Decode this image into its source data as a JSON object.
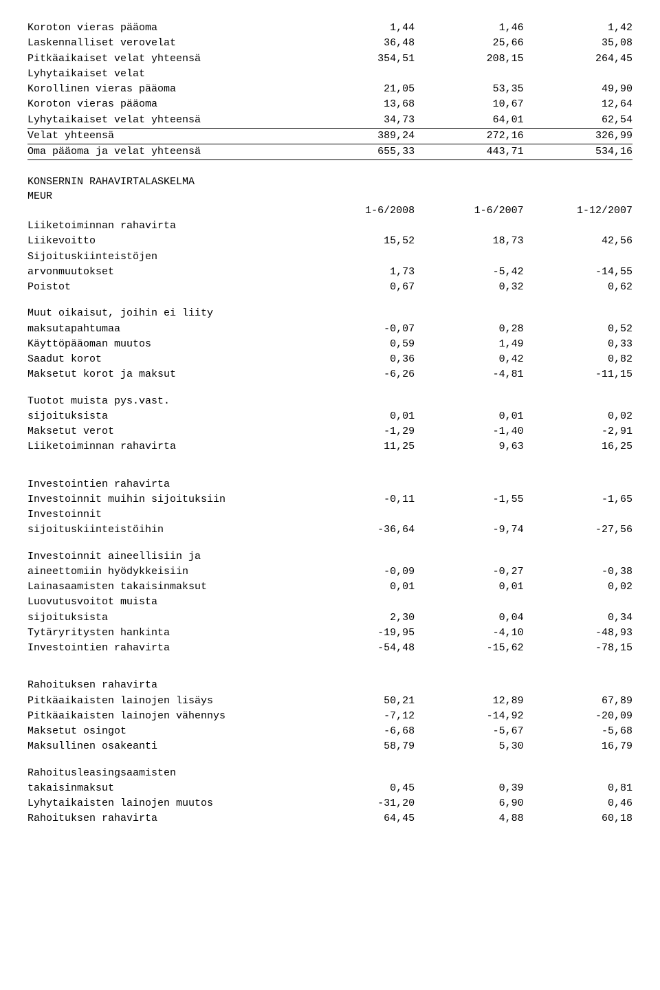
{
  "top": [
    {
      "label": "Koroton vieras pääoma",
      "v": [
        "1,44",
        "1,46",
        "1,42"
      ]
    },
    {
      "label": "Laskennalliset verovelat",
      "v": [
        "36,48",
        "25,66",
        "35,08"
      ]
    },
    {
      "label": "Pitkäaikaiset velat yhteensä",
      "v": [
        "354,51",
        "208,15",
        "264,45"
      ]
    },
    {
      "label": "Lyhytaikaiset velat",
      "v": [
        "",
        "",
        ""
      ]
    },
    {
      "label": "Korollinen vieras pääoma",
      "v": [
        "21,05",
        "53,35",
        "49,90"
      ]
    },
    {
      "label": "Koroton vieras pääoma",
      "v": [
        "13,68",
        "10,67",
        "12,64"
      ]
    },
    {
      "label": "Lyhytaikaiset velat yhteensä",
      "v": [
        "34,73",
        "64,01",
        "62,54"
      ]
    }
  ],
  "mid": [
    {
      "label": "Velat yhteensä",
      "v": [
        "389,24",
        "272,16",
        "326,99"
      ]
    },
    {
      "label": "Oma pääoma ja velat yhteensä",
      "v": [
        "655,33",
        "443,71",
        "534,16"
      ]
    }
  ],
  "cashflow_title_1": "KONSERNIN RAHAVIRTALASKELMA",
  "cashflow_title_2": "MEUR",
  "period_header": [
    "1-6/2008",
    "1-6/2007",
    "1-12/2007"
  ],
  "op_header": "Liiketoiminnan rahavirta",
  "op": [
    {
      "label": "Liikevoitto",
      "v": [
        "15,52",
        "18,73",
        "42,56"
      ]
    },
    {
      "label": "Sijoituskiinteistöjen",
      "v": [
        "",
        "",
        ""
      ]
    },
    {
      "label": "arvonmuutokset",
      "v": [
        "1,73",
        "-5,42",
        "-14,55"
      ]
    },
    {
      "label": "Poistot",
      "v": [
        "0,67",
        "0,32",
        "0,62"
      ]
    }
  ],
  "op2": [
    {
      "label": "Muut oikaisut, joihin ei liity",
      "v": [
        "",
        "",
        ""
      ]
    },
    {
      "label": "maksutapahtumaa",
      "v": [
        "-0,07",
        "0,28",
        "0,52"
      ]
    },
    {
      "label": "Käyttöpääoman muutos",
      "v": [
        "0,59",
        "1,49",
        "0,33"
      ]
    },
    {
      "label": "Saadut korot",
      "v": [
        "0,36",
        "0,42",
        "0,82"
      ]
    },
    {
      "label": "Maksetut korot ja maksut",
      "v": [
        "-6,26",
        "-4,81",
        "-11,15"
      ]
    }
  ],
  "op3": [
    {
      "label": "Tuotot muista pys.vast.",
      "v": [
        "",
        "",
        ""
      ]
    },
    {
      "label": "sijoituksista",
      "v": [
        "0,01",
        "0,01",
        "0,02"
      ]
    },
    {
      "label": "Maksetut verot",
      "v": [
        "-1,29",
        "-1,40",
        "-2,91"
      ]
    },
    {
      "label": "Liiketoiminnan rahavirta",
      "v": [
        "11,25",
        "9,63",
        "16,25"
      ]
    }
  ],
  "inv_header": "Investointien rahavirta",
  "inv": [
    {
      "label": "Investoinnit muihin sijoituksiin",
      "v": [
        "-0,11",
        "-1,55",
        "-1,65"
      ]
    },
    {
      "label": "Investoinnit",
      "v": [
        "",
        "",
        ""
      ]
    },
    {
      "label": "sijoituskiinteistöihin",
      "v": [
        "-36,64",
        "-9,74",
        "-27,56"
      ]
    }
  ],
  "inv2": [
    {
      "label": "Investoinnit aineellisiin ja",
      "v": [
        "",
        "",
        ""
      ]
    },
    {
      "label": "aineettomiin hyödykkeisiin",
      "v": [
        "-0,09",
        "-0,27",
        "-0,38"
      ]
    },
    {
      "label": "Lainasaamisten takaisinmaksut",
      "v": [
        "0,01",
        "0,01",
        "0,02"
      ]
    },
    {
      "label": "Luovutusvoitot muista",
      "v": [
        "",
        "",
        ""
      ]
    },
    {
      "label": "sijoituksista",
      "v": [
        "2,30",
        "0,04",
        "0,34"
      ]
    },
    {
      "label": "Tytäryritysten hankinta",
      "v": [
        "-19,95",
        "-4,10",
        "-48,93"
      ]
    },
    {
      "label": "Investointien rahavirta",
      "v": [
        "-54,48",
        "-15,62",
        "-78,15"
      ]
    }
  ],
  "fin_header": "Rahoituksen rahavirta",
  "fin": [
    {
      "label": "Pitkäaikaisten lainojen lisäys",
      "v": [
        "50,21",
        "12,89",
        "67,89"
      ]
    },
    {
      "label": "Pitkäaikaisten lainojen vähennys",
      "v": [
        "-7,12",
        "-14,92",
        "-20,09"
      ]
    },
    {
      "label": "Maksetut osingot",
      "v": [
        "-6,68",
        "-5,67",
        "-5,68"
      ]
    },
    {
      "label": "Maksullinen osakeanti",
      "v": [
        "58,79",
        "5,30",
        "16,79"
      ]
    }
  ],
  "fin2": [
    {
      "label": "Rahoitusleasingsaamisten",
      "v": [
        "",
        "",
        ""
      ]
    },
    {
      "label": "takaisinmaksut",
      "v": [
        "0,45",
        "0,39",
        "0,81"
      ]
    },
    {
      "label": "Lyhytaikaisten lainojen muutos",
      "v": [
        "-31,20",
        "6,90",
        "0,46"
      ]
    },
    {
      "label": "Rahoituksen rahavirta",
      "v": [
        "64,45",
        "4,88",
        "60,18"
      ]
    }
  ]
}
